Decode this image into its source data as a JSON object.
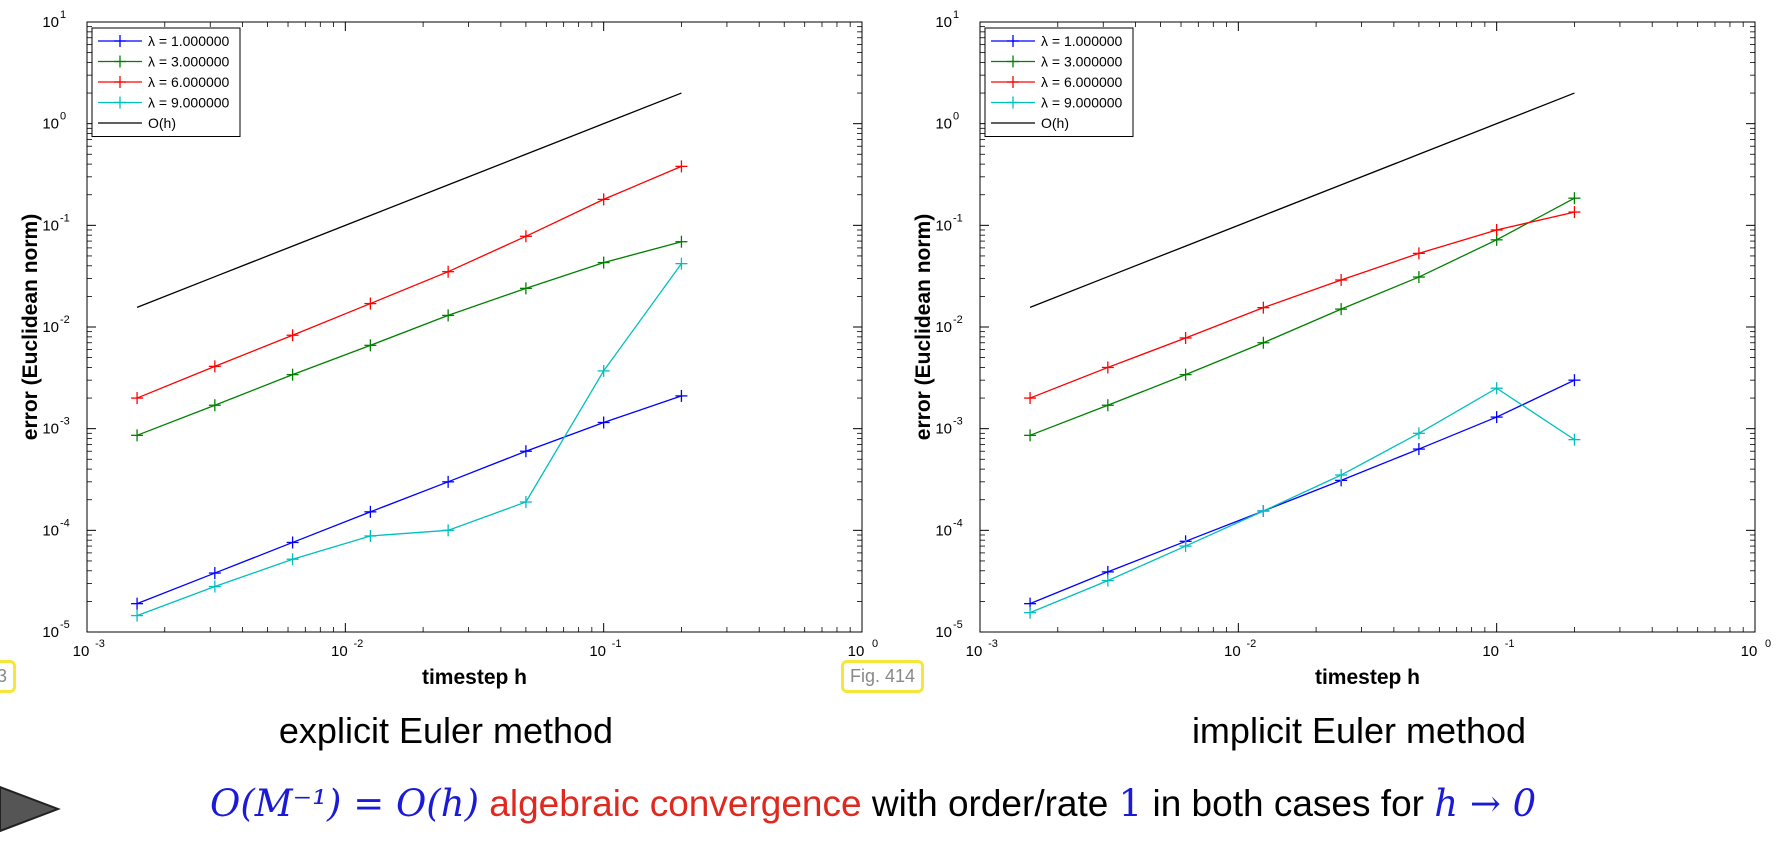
{
  "colors": {
    "blue": "#0000ff",
    "green": "#008000",
    "red": "#ff0000",
    "cyan": "#00bfbf",
    "black": "#000000",
    "math_blue": "#1a1ad8",
    "text_red": "#e0281e",
    "tag_border": "#f5e63c"
  },
  "fig_tags": {
    "left_partial": "3",
    "right": "Fig. 414"
  },
  "captions": {
    "left": "explicit Euler method",
    "right": "implicit Euler method"
  },
  "bottom": {
    "math_lhs": "O(M⁻¹) = O(h)",
    "highlight": "algebraic convergence",
    "middle": "with order/rate",
    "rate": "1",
    "tail": "in both cases for",
    "limit": "h → 0"
  },
  "chart_data": [
    {
      "type": "line",
      "xscale": "log",
      "yscale": "log",
      "xlabel": "timestep h",
      "ylabel": "error (Euclidean norm)",
      "xlim": [
        0.001,
        1
      ],
      "ylim": [
        1e-05,
        10
      ],
      "xticks": [
        {
          "base": "10",
          "exp": "-3"
        },
        {
          "base": "10",
          "exp": "-2"
        },
        {
          "base": "10",
          "exp": "-1"
        },
        {
          "base": "10",
          "exp": "0"
        }
      ],
      "yticks": [
        {
          "base": "10",
          "exp": "-5"
        },
        {
          "base": "10",
          "exp": "-4"
        },
        {
          "base": "10",
          "exp": "-3"
        },
        {
          "base": "10",
          "exp": "-2"
        },
        {
          "base": "10",
          "exp": "-1"
        },
        {
          "base": "10",
          "exp": "0"
        },
        {
          "base": "10",
          "exp": "1"
        }
      ],
      "legend_position": "top-left",
      "grid": false,
      "x": [
        0.0015625,
        0.003125,
        0.00625,
        0.0125,
        0.025,
        0.05,
        0.1,
        0.2
      ],
      "series": [
        {
          "name": "λ = 1.000000",
          "color": "blue",
          "marker": "+",
          "values": [
            1.9e-05,
            3.8e-05,
            7.6e-05,
            0.000152,
            0.0003,
            0.0006,
            0.00115,
            0.0021
          ]
        },
        {
          "name": "λ = 3.000000",
          "color": "green",
          "marker": "+",
          "values": [
            0.00086,
            0.0017,
            0.0034,
            0.0066,
            0.013,
            0.024,
            0.043,
            0.069
          ]
        },
        {
          "name": "λ = 6.000000",
          "color": "red",
          "marker": "+",
          "values": [
            0.002,
            0.0041,
            0.0083,
            0.017,
            0.035,
            0.078,
            0.18,
            0.38
          ]
        },
        {
          "name": "λ = 9.000000",
          "color": "cyan",
          "marker": "+",
          "values": [
            1.45e-05,
            2.8e-05,
            5.2e-05,
            8.8e-05,
            0.0001,
            0.00019,
            0.0037,
            0.042
          ]
        },
        {
          "name": "O(h)",
          "color": "black",
          "marker": "none",
          "values": [
            0.0156,
            0.03125,
            0.0625,
            0.125,
            0.25,
            0.5,
            1.0,
            2.0
          ]
        }
      ]
    },
    {
      "type": "line",
      "xscale": "log",
      "yscale": "log",
      "xlabel": "timestep h",
      "ylabel": "error (Euclidean norm)",
      "xlim": [
        0.001,
        1
      ],
      "ylim": [
        1e-05,
        10
      ],
      "xticks": [
        {
          "base": "10",
          "exp": "-3"
        },
        {
          "base": "10",
          "exp": "-2"
        },
        {
          "base": "10",
          "exp": "-1"
        },
        {
          "base": "10",
          "exp": "0"
        }
      ],
      "yticks": [
        {
          "base": "10",
          "exp": "-5"
        },
        {
          "base": "10",
          "exp": "-4"
        },
        {
          "base": "10",
          "exp": "-3"
        },
        {
          "base": "10",
          "exp": "-2"
        },
        {
          "base": "10",
          "exp": "-1"
        },
        {
          "base": "10",
          "exp": "0"
        },
        {
          "base": "10",
          "exp": "1"
        }
      ],
      "legend_position": "top-left",
      "grid": false,
      "x": [
        0.0015625,
        0.003125,
        0.00625,
        0.0125,
        0.025,
        0.05,
        0.1,
        0.2
      ],
      "series": [
        {
          "name": "λ = 1.000000",
          "color": "blue",
          "marker": "+",
          "values": [
            1.9e-05,
            3.9e-05,
            7.8e-05,
            0.000155,
            0.00031,
            0.00063,
            0.0013,
            0.003
          ]
        },
        {
          "name": "λ = 3.000000",
          "color": "green",
          "marker": "+",
          "values": [
            0.00086,
            0.0017,
            0.0034,
            0.007,
            0.015,
            0.031,
            0.072,
            0.185
          ]
        },
        {
          "name": "λ = 6.000000",
          "color": "red",
          "marker": "+",
          "values": [
            0.002,
            0.004,
            0.0078,
            0.0155,
            0.029,
            0.053,
            0.09,
            0.135
          ]
        },
        {
          "name": "λ = 9.000000",
          "color": "cyan",
          "marker": "+",
          "values": [
            1.55e-05,
            3.2e-05,
            7e-05,
            0.000155,
            0.00035,
            0.0009,
            0.0025,
            0.00078
          ]
        },
        {
          "name": "O(h)",
          "color": "black",
          "marker": "none",
          "values": [
            0.0156,
            0.03125,
            0.0625,
            0.125,
            0.25,
            0.5,
            1.0,
            2.0
          ]
        }
      ]
    }
  ]
}
